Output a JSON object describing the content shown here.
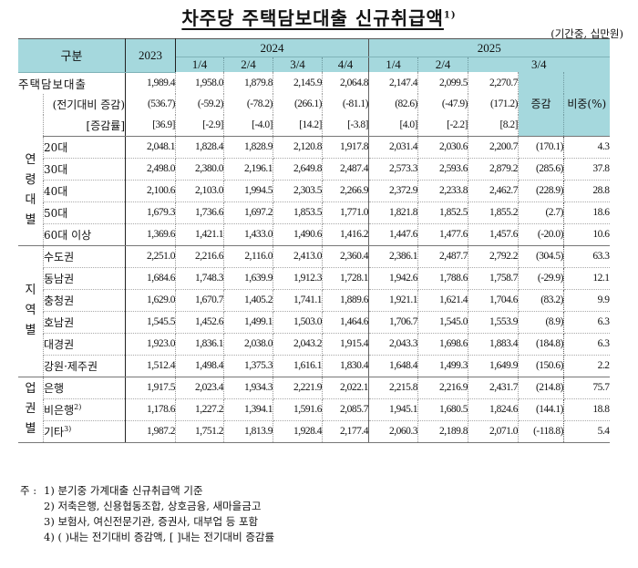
{
  "title": "차주당 주택담보대출 신규취급액",
  "title_footnote": "1)",
  "unit": "(기간중, 십만원)",
  "header": {
    "gubun": "구분",
    "y2023": "2023",
    "y2024": "2024",
    "y2025": "2025",
    "q2024": [
      "1/4",
      "2/4",
      "3/4",
      "4/4"
    ],
    "q2025": [
      "1/4",
      "2/4",
      "3/4"
    ],
    "change": "증감",
    "share": "비중(%)"
  },
  "total": {
    "label": "주택담보대출",
    "values": [
      "1,989.4",
      "1,958.0",
      "1,879.8",
      "2,145.9",
      "2,064.8",
      "2,147.4",
      "2,099.5",
      "2,270.7"
    ],
    "prev_label": "(전기대비 증감)",
    "prev_values": [
      "(536.7)",
      "(-59.2)",
      "(-78.2)",
      "(266.1)",
      "(-81.1)",
      "(82.6)",
      "(-47.9)",
      "(171.2)"
    ],
    "rate_label": "[증감률]",
    "rate_values": [
      "[36.9]",
      "[-2.9]",
      "[-4.0]",
      "[14.2]",
      "[-3.8]",
      "[4.0]",
      "[-2.2]",
      "[8.2]"
    ]
  },
  "groups": [
    {
      "category": "연령대별",
      "category_chars": [
        "연",
        "령",
        "대",
        "별"
      ],
      "rows": [
        {
          "label": "20대",
          "values": [
            "2,048.1",
            "1,828.4",
            "1,828.9",
            "2,120.8",
            "1,917.8",
            "2,031.4",
            "2,030.6",
            "2,200.7"
          ],
          "change": "(170.1)",
          "share": "4.3"
        },
        {
          "label": "30대",
          "values": [
            "2,498.0",
            "2,380.0",
            "2,196.1",
            "2,649.8",
            "2,487.4",
            "2,573.3",
            "2,593.6",
            "2,879.2"
          ],
          "change": "(285.6)",
          "share": "37.8"
        },
        {
          "label": "40대",
          "values": [
            "2,100.6",
            "2,103.0",
            "1,994.5",
            "2,303.5",
            "2,266.9",
            "2,372.9",
            "2,233.8",
            "2,462.7"
          ],
          "change": "(228.9)",
          "share": "28.8"
        },
        {
          "label": "50대",
          "values": [
            "1,679.3",
            "1,736.6",
            "1,697.2",
            "1,853.5",
            "1,771.0",
            "1,821.8",
            "1,852.5",
            "1,855.2"
          ],
          "change": "(2.7)",
          "share": "18.6"
        },
        {
          "label": "60대 이상",
          "values": [
            "1,369.6",
            "1,421.1",
            "1,433.0",
            "1,490.6",
            "1,416.2",
            "1,447.6",
            "1,477.6",
            "1,457.6"
          ],
          "change": "(-20.0)",
          "share": "10.6"
        }
      ]
    },
    {
      "category": "지역별",
      "category_chars": [
        "지",
        "역",
        "별"
      ],
      "rows": [
        {
          "label": "수도권",
          "values": [
            "2,251.0",
            "2,216.6",
            "2,116.0",
            "2,413.0",
            "2,360.4",
            "2,386.1",
            "2,487.7",
            "2,792.2"
          ],
          "change": "(304.5)",
          "share": "63.3"
        },
        {
          "label": "동남권",
          "values": [
            "1,684.6",
            "1,748.3",
            "1,639.9",
            "1,912.3",
            "1,728.1",
            "1,942.6",
            "1,788.6",
            "1,758.7"
          ],
          "change": "(-29.9)",
          "share": "12.1"
        },
        {
          "label": "충청권",
          "values": [
            "1,629.0",
            "1,670.7",
            "1,405.2",
            "1,741.1",
            "1,889.6",
            "1,921.1",
            "1,621.4",
            "1,704.6"
          ],
          "change": "(83.2)",
          "share": "9.9"
        },
        {
          "label": "호남권",
          "values": [
            "1,545.5",
            "1,452.6",
            "1,499.1",
            "1,503.0",
            "1,464.6",
            "1,706.7",
            "1,545.0",
            "1,553.9"
          ],
          "change": "(8.9)",
          "share": "6.3"
        },
        {
          "label": "대경권",
          "values": [
            "1,923.0",
            "1,836.1",
            "2,038.0",
            "2,043.2",
            "1,915.4",
            "2,043.3",
            "1,698.6",
            "1,883.4"
          ],
          "change": "(184.8)",
          "share": "6.3"
        },
        {
          "label": "강원·제주권",
          "values": [
            "1,512.4",
            "1,498.4",
            "1,375.3",
            "1,616.1",
            "1,830.4",
            "1,648.4",
            "1,499.3",
            "1,649.9"
          ],
          "change": "(150.6)",
          "share": "2.2"
        }
      ]
    },
    {
      "category": "업권별",
      "category_chars": [
        "업",
        "권",
        "별"
      ],
      "rows": [
        {
          "label": "은행",
          "footnote": "",
          "values": [
            "1,917.5",
            "2,023.4",
            "1,934.3",
            "2,221.9",
            "2,022.1",
            "2,215.8",
            "2,216.9",
            "2,431.7"
          ],
          "change": "(214.8)",
          "share": "75.7"
        },
        {
          "label": "비은행",
          "footnote": "2)",
          "values": [
            "1,178.6",
            "1,227.2",
            "1,394.1",
            "1,591.6",
            "2,085.7",
            "1,945.1",
            "1,680.5",
            "1,824.6"
          ],
          "change": "(144.1)",
          "share": "18.8"
        },
        {
          "label": "기타",
          "footnote": "3)",
          "values": [
            "1,987.2",
            "1,751.2",
            "1,813.9",
            "1,928.4",
            "2,177.4",
            "2,060.3",
            "2,189.8",
            "2,071.0"
          ],
          "change": "(-118.8)",
          "share": "5.4"
        }
      ]
    }
  ],
  "notes": {
    "prefix": "주 :",
    "items": [
      "1) 분기중 가계대출 신규취급액 기준",
      "2) 저축은행, 신용협동조합, 상호금융, 새마을금고",
      "3) 보험사, 여신전문기관, 증권사, 대부업 등 포함",
      "4) ( )내는 전기대비 증감액, [ ]내는 전기대비 증감률"
    ]
  }
}
